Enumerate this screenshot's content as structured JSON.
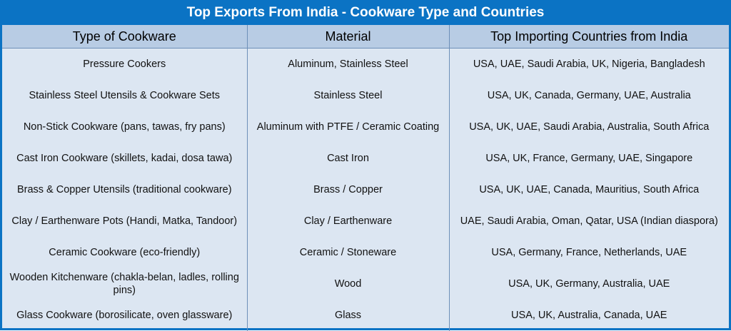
{
  "title": "Top Exports From India - Cookware Type and Countries",
  "headers": [
    "Type of Cookware",
    "Material",
    "Top Importing Countries from India"
  ],
  "rows": [
    [
      "Pressure Cookers",
      "Aluminum, Stainless Steel",
      "USA, UAE, Saudi Arabia, UK, Nigeria, Bangladesh"
    ],
    [
      "Stainless Steel Utensils & Cookware Sets",
      "Stainless Steel",
      "USA, UK, Canada, Germany, UAE, Australia"
    ],
    [
      "Non-Stick Cookware (pans, tawas, fry pans)",
      "Aluminum with PTFE / Ceramic Coating",
      "USA, UK, UAE, Saudi Arabia, Australia, South Africa"
    ],
    [
      "Cast Iron Cookware (skillets, kadai, dosa tawa)",
      "Cast Iron",
      "USA, UK, France, Germany, UAE, Singapore"
    ],
    [
      "Brass & Copper Utensils (traditional cookware)",
      "Brass / Copper",
      "USA, UK, UAE, Canada, Mauritius, South Africa"
    ],
    [
      "Clay / Earthenware Pots (Handi, Matka, Tandoor)",
      "Clay / Earthenware",
      "UAE, Saudi Arabia, Oman, Qatar, USA (Indian diaspora)"
    ],
    [
      "Ceramic Cookware (eco-friendly)",
      "Ceramic / Stoneware",
      "USA, Germany, France, Netherlands, UAE"
    ],
    [
      "Wooden Kitchenware (chakla-belan, ladles, rolling pins)",
      "Wood",
      "USA, UK, Germany, Australia, UAE"
    ],
    [
      "Glass Cookware (borosilicate, oven glassware)",
      "Glass",
      "USA, UK, Australia, Canada, UAE"
    ]
  ],
  "colors": {
    "title_bg": "#0b73c4",
    "header_bg": "#b8cce4",
    "body_bg": "#dce6f2"
  }
}
